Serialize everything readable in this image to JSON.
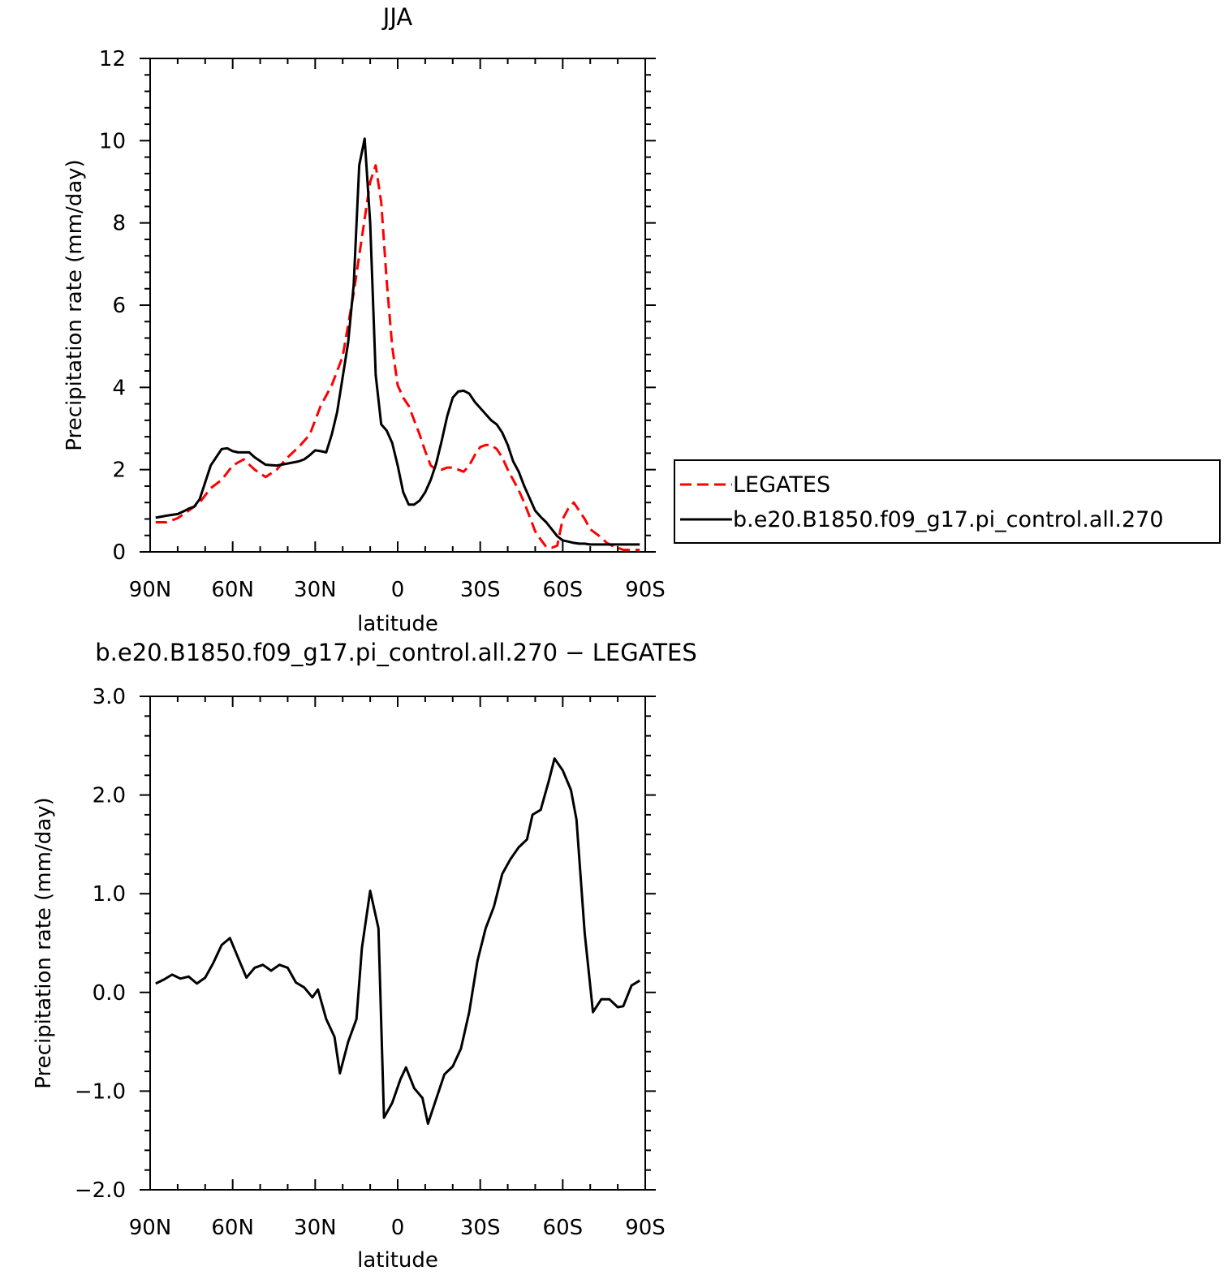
{
  "chart_data": [
    {
      "type": "line",
      "title": "JJA",
      "xlabel": "latitude",
      "ylabel": "Precipitation rate (mm/day)",
      "xlim": [
        90,
        -90
      ],
      "ylim": [
        0,
        12
      ],
      "x_ticks": [
        90,
        60,
        30,
        0,
        -30,
        -60,
        -90
      ],
      "x_tick_labels": [
        "90N",
        "60N",
        "30N",
        "0",
        "30S",
        "60S",
        "90S"
      ],
      "y_ticks": [
        0,
        2,
        4,
        6,
        8,
        10,
        12
      ],
      "y_tick_labels": [
        "0",
        "2",
        "4",
        "6",
        "8",
        "10",
        "12"
      ],
      "grid": false,
      "legend": "right",
      "series": [
        {
          "name": "LEGATES",
          "color": "#ff0000",
          "style": "dashed",
          "x": [
            88,
            84,
            80,
            76,
            72,
            68,
            64,
            60,
            56,
            52,
            48,
            44,
            40,
            36,
            32,
            28,
            24,
            20,
            16,
            12,
            10,
            8,
            6,
            4,
            2,
            0,
            -2,
            -4,
            -6,
            -8,
            -10,
            -12,
            -14,
            -16,
            -18,
            -20,
            -22,
            -24,
            -26,
            -28,
            -30,
            -32,
            -34,
            -36,
            -38,
            -40,
            -42,
            -44,
            -46,
            -48,
            -50,
            -52,
            -54,
            -56,
            -58,
            -60,
            -62,
            -64,
            -66,
            -68,
            -70,
            -72,
            -74,
            -76,
            -78,
            -80,
            -82,
            -84,
            -86,
            -88
          ],
          "values": [
            0.72,
            0.72,
            0.82,
            1.0,
            1.2,
            1.55,
            1.75,
            2.1,
            2.25,
            2.0,
            1.82,
            2.0,
            2.3,
            2.55,
            2.85,
            3.55,
            4.05,
            4.75,
            6.3,
            8.1,
            9.0,
            9.4,
            8.5,
            6.6,
            5.0,
            4.05,
            3.75,
            3.55,
            3.2,
            2.85,
            2.45,
            2.1,
            2.0,
            2.0,
            2.05,
            2.05,
            2.0,
            1.95,
            2.1,
            2.35,
            2.55,
            2.6,
            2.6,
            2.5,
            2.3,
            2.0,
            1.75,
            1.5,
            1.2,
            0.85,
            0.5,
            0.3,
            0.12,
            0.1,
            0.15,
            0.8,
            1.05,
            1.2,
            1.0,
            0.8,
            0.55,
            0.45,
            0.35,
            0.22,
            0.15,
            0.1,
            0.05,
            0.05,
            0.05,
            0.05
          ]
        },
        {
          "name": "b.e20.B1850.f09_g17.pi_control.all.270",
          "color": "#000000",
          "style": "solid",
          "x": [
            88,
            84,
            80,
            78,
            76,
            74,
            72,
            68,
            64,
            62,
            60,
            58,
            54,
            52,
            48,
            44,
            40,
            36,
            34,
            32,
            30,
            28,
            26,
            24,
            22,
            20,
            18,
            16,
            14,
            12,
            10,
            8,
            6,
            4,
            2,
            0,
            -2,
            -4,
            -6,
            -8,
            -10,
            -12,
            -14,
            -16,
            -18,
            -20,
            -22,
            -24,
            -26,
            -28,
            -30,
            -32,
            -34,
            -36,
            -38,
            -40,
            -42,
            -44,
            -46,
            -48,
            -50,
            -52,
            -54,
            -56,
            -58,
            -60,
            -62,
            -64,
            -66,
            -68,
            -70,
            -72,
            -76,
            -80,
            -84,
            -88
          ],
          "values": [
            0.83,
            0.88,
            0.92,
            0.98,
            1.05,
            1.1,
            1.28,
            2.1,
            2.5,
            2.52,
            2.45,
            2.42,
            2.42,
            2.3,
            2.12,
            2.1,
            2.15,
            2.2,
            2.25,
            2.35,
            2.47,
            2.45,
            2.42,
            2.85,
            3.4,
            4.25,
            5.1,
            6.5,
            9.4,
            10.05,
            8.0,
            4.3,
            3.1,
            2.95,
            2.65,
            2.1,
            1.45,
            1.15,
            1.15,
            1.25,
            1.45,
            1.75,
            2.15,
            2.7,
            3.3,
            3.75,
            3.9,
            3.92,
            3.85,
            3.65,
            3.5,
            3.35,
            3.2,
            3.1,
            2.9,
            2.6,
            2.2,
            1.95,
            1.6,
            1.3,
            1.0,
            0.85,
            0.72,
            0.55,
            0.38,
            0.28,
            0.25,
            0.22,
            0.2,
            0.2,
            0.18,
            0.18,
            0.18,
            0.18,
            0.18,
            0.18
          ]
        }
      ]
    },
    {
      "type": "line",
      "title": "b.e20.B1850.f09_g17.pi_control.all.270 − LEGATES",
      "xlabel": "latitude",
      "ylabel": "Precipitation rate (mm/day)",
      "xlim": [
        90,
        -90
      ],
      "ylim": [
        -2.0,
        3.0
      ],
      "x_ticks": [
        90,
        60,
        30,
        0,
        -30,
        -60,
        -90
      ],
      "x_tick_labels": [
        "90N",
        "60N",
        "30N",
        "0",
        "30S",
        "60S",
        "90S"
      ],
      "y_ticks": [
        -2.0,
        -1.0,
        0.0,
        1.0,
        2.0,
        3.0
      ],
      "y_tick_labels": [
        "−2.0",
        "−1.0",
        "0.0",
        "1.0",
        "2.0",
        "3.0"
      ],
      "grid": false,
      "series": [
        {
          "color": "#000000",
          "style": "solid",
          "x": [
            88,
            85,
            82,
            79,
            76,
            73,
            70,
            67,
            64,
            61,
            58,
            55,
            52,
            49,
            46,
            43,
            40,
            37,
            34,
            31,
            29,
            26,
            23,
            21,
            18,
            15,
            13,
            10,
            7,
            5,
            2,
            -1,
            -3,
            -6,
            -9,
            -11,
            -14,
            -17,
            -20,
            -23,
            -26,
            -29,
            -32,
            -35,
            -38,
            -41,
            -44,
            -47,
            -49,
            -52,
            -55,
            -57,
            -60,
            -63,
            -65,
            -68,
            -71,
            -74,
            -77,
            -80,
            -82,
            -85,
            -88
          ],
          "values": [
            0.09,
            0.13,
            0.18,
            0.14,
            0.16,
            0.09,
            0.15,
            0.3,
            0.48,
            0.55,
            0.35,
            0.15,
            0.25,
            0.28,
            0.22,
            0.28,
            0.25,
            0.1,
            0.05,
            -0.05,
            0.03,
            -0.27,
            -0.45,
            -0.82,
            -0.5,
            -0.27,
            0.45,
            1.03,
            0.65,
            -1.27,
            -1.12,
            -0.88,
            -0.76,
            -0.97,
            -1.07,
            -1.33,
            -1.08,
            -0.83,
            -0.75,
            -0.57,
            -0.2,
            0.32,
            0.65,
            0.87,
            1.2,
            1.35,
            1.47,
            1.55,
            1.8,
            1.85,
            2.15,
            2.37,
            2.25,
            2.05,
            1.75,
            0.6,
            -0.2,
            -0.07,
            -0.07,
            -0.15,
            -0.14,
            0.07,
            0.12
          ]
        }
      ]
    }
  ]
}
